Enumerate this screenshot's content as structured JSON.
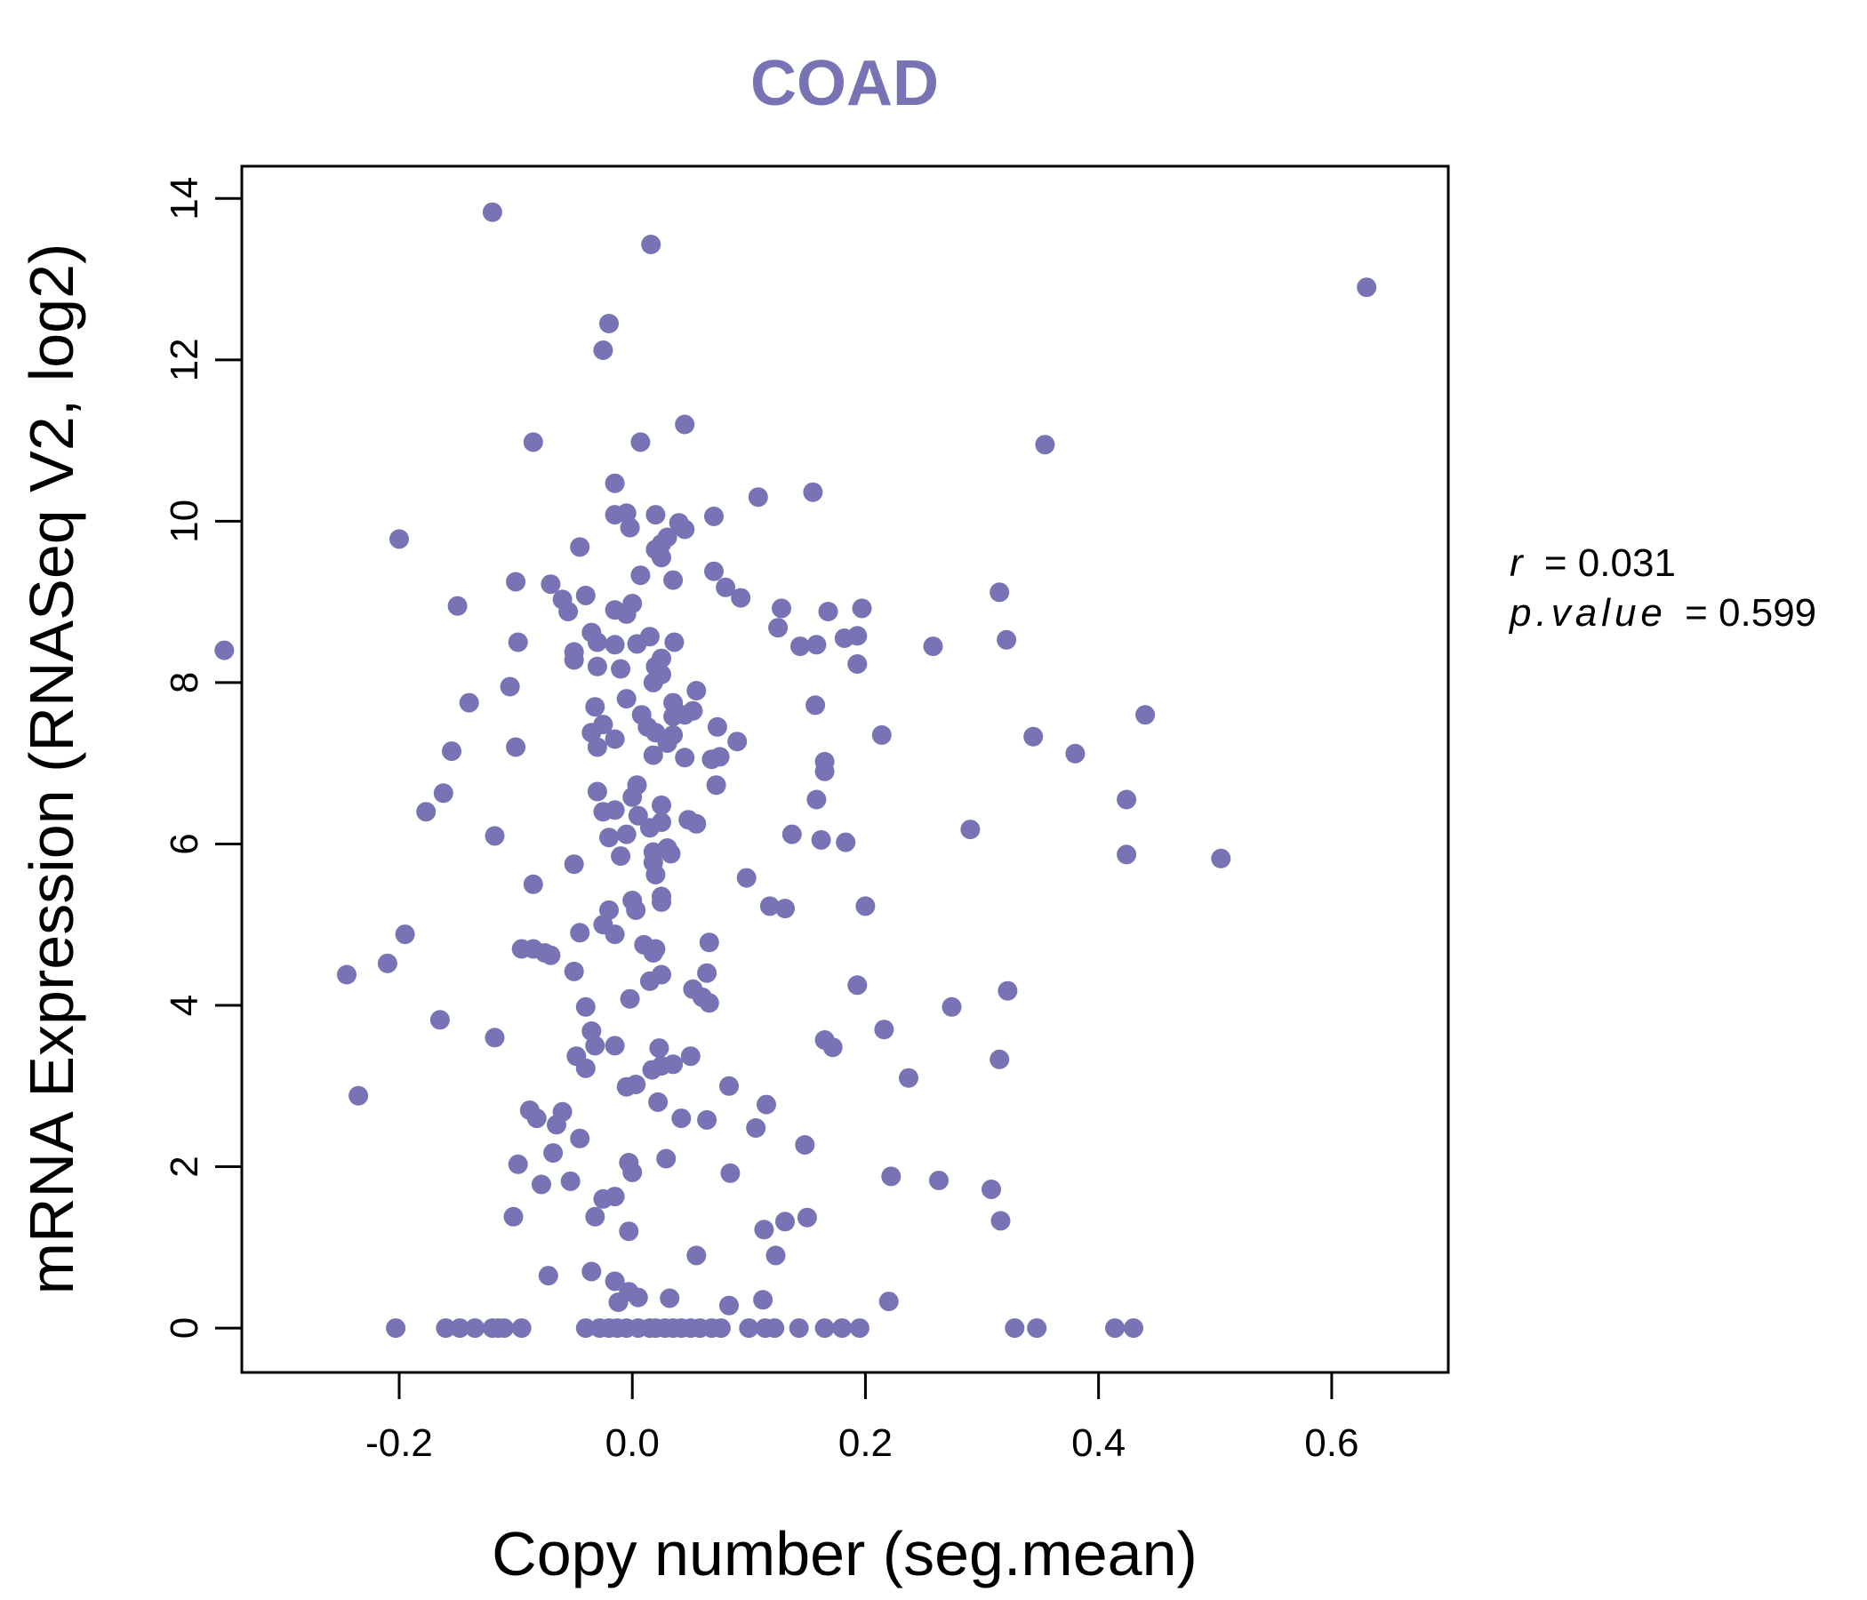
{
  "colors": {
    "point": "#7773b4",
    "title": "#7773b4",
    "axis": "#000000",
    "background": "#ffffff"
  },
  "stats": {
    "r_label": "r",
    "r_value": "= 0.031",
    "p_label": "p.value",
    "p_value": "= 0.599"
  },
  "chart_data": {
    "type": "scatter",
    "title": "COAD",
    "xlabel": "Copy number (seg.mean)",
    "ylabel": "mRNA Expression (RNASeq V2, log2)",
    "xlim": [
      -0.335,
      0.7
    ],
    "ylim": [
      -0.55,
      14.4
    ],
    "xticks": [
      -0.2,
      0.0,
      0.2,
      0.4,
      0.6
    ],
    "xtick_labels": [
      "-0.2",
      "0.0",
      "0.2",
      "0.4",
      "0.6"
    ],
    "yticks": [
      0,
      2,
      4,
      6,
      8,
      10,
      12,
      14
    ],
    "ytick_labels": [
      "0",
      "2",
      "4",
      "6",
      "8",
      "10",
      "12",
      "14"
    ],
    "points": [
      [
        -0.12,
        13.83
      ],
      [
        0.016,
        13.43
      ],
      [
        0.63,
        12.9
      ],
      [
        -0.02,
        12.45
      ],
      [
        -0.025,
        12.12
      ],
      [
        0.045,
        11.2
      ],
      [
        -0.085,
        10.98
      ],
      [
        0.007,
        10.98
      ],
      [
        0.354,
        10.95
      ],
      [
        -0.015,
        10.47
      ],
      [
        0.108,
        10.3
      ],
      [
        0.155,
        10.36
      ],
      [
        -0.005,
        10.1
      ],
      [
        -0.015,
        10.08
      ],
      [
        0.07,
        10.06
      ],
      [
        0.02,
        10.08
      ],
      [
        0.04,
        9.98
      ],
      [
        -0.002,
        9.92
      ],
      [
        0.045,
        9.9
      ],
      [
        -0.2,
        9.78
      ],
      [
        0.025,
        9.72
      ],
      [
        0.03,
        9.8
      ],
      [
        0.02,
        9.65
      ],
      [
        -0.045,
        9.68
      ],
      [
        0.025,
        9.55
      ],
      [
        0.007,
        9.33
      ],
      [
        0.07,
        9.38
      ],
      [
        -0.1,
        9.25
      ],
      [
        -0.07,
        9.22
      ],
      [
        0.035,
        9.27
      ],
      [
        0.08,
        9.18
      ],
      [
        0.315,
        9.12
      ],
      [
        -0.04,
        9.08
      ],
      [
        -0.06,
        9.03
      ],
      [
        0.093,
        9.05
      ],
      [
        -0.15,
        8.95
      ],
      [
        -0.055,
        8.88
      ],
      [
        -0.015,
        8.9
      ],
      [
        0.0,
        8.98
      ],
      [
        -0.005,
        8.85
      ],
      [
        0.128,
        8.92
      ],
      [
        0.168,
        8.88
      ],
      [
        0.197,
        8.92
      ],
      [
        -0.035,
        8.62
      ],
      [
        0.015,
        8.57
      ],
      [
        0.125,
        8.68
      ],
      [
        -0.098,
        8.5
      ],
      [
        -0.03,
        8.5
      ],
      [
        0.004,
        8.48
      ],
      [
        -0.015,
        8.47
      ],
      [
        0.036,
        8.5
      ],
      [
        0.158,
        8.47
      ],
      [
        0.144,
        8.45
      ],
      [
        0.182,
        8.55
      ],
      [
        0.193,
        8.58
      ],
      [
        0.258,
        8.45
      ],
      [
        0.321,
        8.53
      ],
      [
        -0.35,
        8.4
      ],
      [
        -0.05,
        8.38
      ],
      [
        -0.05,
        8.28
      ],
      [
        -0.03,
        8.2
      ],
      [
        0.02,
        8.2
      ],
      [
        0.025,
        8.3
      ],
      [
        -0.01,
        8.17
      ],
      [
        0.025,
        8.1
      ],
      [
        0.018,
        8.0
      ],
      [
        0.193,
        8.23
      ],
      [
        -0.105,
        7.95
      ],
      [
        0.055,
        7.9
      ],
      [
        -0.005,
        7.8
      ],
      [
        -0.14,
        7.75
      ],
      [
        0.035,
        7.75
      ],
      [
        -0.032,
        7.7
      ],
      [
        0.157,
        7.72
      ],
      [
        0.052,
        7.65
      ],
      [
        0.008,
        7.6
      ],
      [
        0.035,
        7.58
      ],
      [
        0.045,
        7.6
      ],
      [
        0.44,
        7.6
      ],
      [
        -0.025,
        7.48
      ],
      [
        0.013,
        7.45
      ],
      [
        0.073,
        7.45
      ],
      [
        -0.035,
        7.38
      ],
      [
        0.02,
        7.38
      ],
      [
        0.035,
        7.35
      ],
      [
        0.214,
        7.35
      ],
      [
        0.344,
        7.33
      ],
      [
        -0.015,
        7.3
      ],
      [
        0.09,
        7.27
      ],
      [
        0.03,
        7.25
      ],
      [
        -0.1,
        7.2
      ],
      [
        -0.03,
        7.2
      ],
      [
        -0.155,
        7.15
      ],
      [
        0.018,
        7.1
      ],
      [
        0.045,
        7.07
      ],
      [
        0.068,
        7.05
      ],
      [
        0.075,
        7.08
      ],
      [
        0.38,
        7.12
      ],
      [
        0.165,
        7.02
      ],
      [
        0.165,
        6.9
      ],
      [
        0.072,
        6.73
      ],
      [
        0.004,
        6.73
      ],
      [
        -0.03,
        6.65
      ],
      [
        -0.162,
        6.63
      ],
      [
        0.0,
        6.58
      ],
      [
        0.158,
        6.55
      ],
      [
        0.424,
        6.55
      ],
      [
        0.025,
        6.48
      ],
      [
        -0.025,
        6.4
      ],
      [
        -0.015,
        6.42
      ],
      [
        -0.177,
        6.4
      ],
      [
        0.005,
        6.35
      ],
      [
        0.048,
        6.3
      ],
      [
        0.025,
        6.27
      ],
      [
        0.055,
        6.25
      ],
      [
        0.015,
        6.2
      ],
      [
        0.29,
        6.18
      ],
      [
        -0.118,
        6.1
      ],
      [
        0.137,
        6.12
      ],
      [
        -0.005,
        6.12
      ],
      [
        -0.02,
        6.08
      ],
      [
        0.162,
        6.05
      ],
      [
        0.183,
        6.02
      ],
      [
        0.03,
        5.95
      ],
      [
        0.018,
        5.9
      ],
      [
        0.033,
        5.88
      ],
      [
        -0.01,
        5.85
      ],
      [
        0.424,
        5.87
      ],
      [
        0.505,
        5.82
      ],
      [
        -0.05,
        5.75
      ],
      [
        0.018,
        5.77
      ],
      [
        0.098,
        5.58
      ],
      [
        0.02,
        5.62
      ],
      [
        -0.085,
        5.5
      ],
      [
        0.025,
        5.35
      ],
      [
        0.025,
        5.28
      ],
      [
        0.0,
        5.3
      ],
      [
        0.003,
        5.18
      ],
      [
        -0.02,
        5.18
      ],
      [
        0.118,
        5.23
      ],
      [
        0.131,
        5.2
      ],
      [
        0.2,
        5.23
      ],
      [
        -0.025,
        5.0
      ],
      [
        -0.015,
        4.88
      ],
      [
        -0.195,
        4.88
      ],
      [
        -0.045,
        4.9
      ],
      [
        0.01,
        4.75
      ],
      [
        0.066,
        4.78
      ],
      [
        0.02,
        4.7
      ],
      [
        -0.085,
        4.7
      ],
      [
        -0.075,
        4.65
      ],
      [
        -0.095,
        4.7
      ],
      [
        -0.07,
        4.62
      ],
      [
        0.018,
        4.65
      ],
      [
        -0.21,
        4.52
      ],
      [
        -0.245,
        4.38
      ],
      [
        -0.05,
        4.42
      ],
      [
        0.025,
        4.38
      ],
      [
        0.064,
        4.4
      ],
      [
        0.015,
        4.3
      ],
      [
        0.052,
        4.2
      ],
      [
        0.06,
        4.1
      ],
      [
        0.066,
        4.03
      ],
      [
        0.193,
        4.25
      ],
      [
        0.322,
        4.18
      ],
      [
        -0.002,
        4.08
      ],
      [
        -0.04,
        3.98
      ],
      [
        0.274,
        3.98
      ],
      [
        -0.165,
        3.82
      ],
      [
        -0.035,
        3.68
      ],
      [
        -0.118,
        3.6
      ],
      [
        -0.032,
        3.5
      ],
      [
        -0.015,
        3.5
      ],
      [
        0.023,
        3.47
      ],
      [
        0.165,
        3.57
      ],
      [
        0.172,
        3.48
      ],
      [
        0.216,
        3.7
      ],
      [
        0.05,
        3.37
      ],
      [
        -0.048,
        3.37
      ],
      [
        0.035,
        3.27
      ],
      [
        0.017,
        3.2
      ],
      [
        0.025,
        3.25
      ],
      [
        -0.04,
        3.22
      ],
      [
        0.315,
        3.33
      ],
      [
        0.237,
        3.1
      ],
      [
        0.083,
        3.0
      ],
      [
        0.003,
        3.02
      ],
      [
        -0.005,
        2.99
      ],
      [
        0.022,
        2.8
      ],
      [
        0.115,
        2.77
      ],
      [
        -0.235,
        2.88
      ],
      [
        -0.088,
        2.7
      ],
      [
        -0.06,
        2.68
      ],
      [
        -0.082,
        2.6
      ],
      [
        -0.065,
        2.52
      ],
      [
        0.042,
        2.6
      ],
      [
        0.064,
        2.58
      ],
      [
        0.106,
        2.48
      ],
      [
        -0.045,
        2.35
      ],
      [
        0.148,
        2.27
      ],
      [
        -0.068,
        2.17
      ],
      [
        0.029,
        2.1
      ],
      [
        -0.098,
        2.03
      ],
      [
        -0.003,
        2.05
      ],
      [
        0.0,
        1.93
      ],
      [
        0.084,
        1.92
      ],
      [
        0.222,
        1.88
      ],
      [
        0.263,
        1.83
      ],
      [
        -0.053,
        1.82
      ],
      [
        -0.078,
        1.78
      ],
      [
        0.308,
        1.72
      ],
      [
        -0.025,
        1.6
      ],
      [
        -0.015,
        1.63
      ],
      [
        -0.102,
        1.38
      ],
      [
        -0.032,
        1.38
      ],
      [
        0.15,
        1.37
      ],
      [
        0.131,
        1.32
      ],
      [
        0.316,
        1.33
      ],
      [
        -0.003,
        1.2
      ],
      [
        0.113,
        1.22
      ],
      [
        0.123,
        0.9
      ],
      [
        0.055,
        0.9
      ],
      [
        -0.035,
        0.7
      ],
      [
        -0.072,
        0.65
      ],
      [
        -0.015,
        0.58
      ],
      [
        -0.003,
        0.45
      ],
      [
        0.005,
        0.38
      ],
      [
        0.032,
        0.37
      ],
      [
        -0.012,
        0.32
      ],
      [
        0.083,
        0.28
      ],
      [
        0.112,
        0.35
      ],
      [
        0.22,
        0.33
      ],
      [
        -0.203,
        0.0
      ],
      [
        -0.16,
        0.0
      ],
      [
        -0.148,
        0.0
      ],
      [
        -0.135,
        0.0
      ],
      [
        -0.12,
        0.0
      ],
      [
        -0.115,
        0.0
      ],
      [
        -0.11,
        0.0
      ],
      [
        -0.095,
        0.0
      ],
      [
        -0.04,
        0.0
      ],
      [
        -0.028,
        0.0
      ],
      [
        -0.02,
        0.0
      ],
      [
        -0.013,
        0.0
      ],
      [
        -0.005,
        0.0
      ],
      [
        0.005,
        0.0
      ],
      [
        0.015,
        0.0
      ],
      [
        0.02,
        0.0
      ],
      [
        0.028,
        0.0
      ],
      [
        0.035,
        0.0
      ],
      [
        0.042,
        0.0
      ],
      [
        0.05,
        0.0
      ],
      [
        0.058,
        0.0
      ],
      [
        0.068,
        0.0
      ],
      [
        0.076,
        0.0
      ],
      [
        0.1,
        0.0
      ],
      [
        0.114,
        0.0
      ],
      [
        0.122,
        0.0
      ],
      [
        0.143,
        0.0
      ],
      [
        0.165,
        0.0
      ],
      [
        0.18,
        0.0
      ],
      [
        0.195,
        0.0
      ],
      [
        0.328,
        0.0
      ],
      [
        0.347,
        0.0
      ],
      [
        0.414,
        0.0
      ],
      [
        0.43,
        0.0
      ]
    ]
  }
}
